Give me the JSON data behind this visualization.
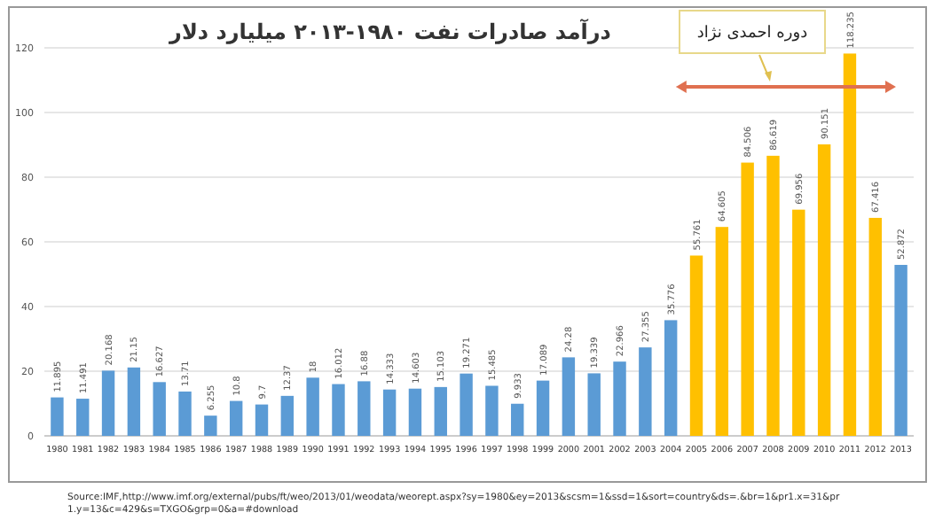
{
  "chart_data": {
    "type": "bar",
    "title": "درآمد صادرات نفت ۱۹۸۰-۲۰۱۳ میلیارد دلار",
    "categories": [
      "1980",
      "1981",
      "1982",
      "1983",
      "1984",
      "1985",
      "1986",
      "1987",
      "1988",
      "1989",
      "1990",
      "1991",
      "1992",
      "1993",
      "1994",
      "1995",
      "1996",
      "1997",
      "1998",
      "1999",
      "2000",
      "2001",
      "2002",
      "2003",
      "2004",
      "2005",
      "2006",
      "2007",
      "2008",
      "2009",
      "2010",
      "2011",
      "2012",
      "2013"
    ],
    "values": [
      11.895,
      11.491,
      20.168,
      21.15,
      16.627,
      13.71,
      6.255,
      10.8,
      9.7,
      12.37,
      18,
      16.012,
      16.88,
      14.333,
      14.603,
      15.103,
      19.271,
      15.485,
      9.933,
      17.089,
      24.28,
      19.339,
      22.966,
      27.355,
      35.776,
      55.761,
      64.605,
      84.506,
      86.619,
      69.956,
      90.151,
      118.235,
      67.416,
      52.872
    ],
    "colors": [
      "#5b9bd5",
      "#5b9bd5",
      "#5b9bd5",
      "#5b9bd5",
      "#5b9bd5",
      "#5b9bd5",
      "#5b9bd5",
      "#5b9bd5",
      "#5b9bd5",
      "#5b9bd5",
      "#5b9bd5",
      "#5b9bd5",
      "#5b9bd5",
      "#5b9bd5",
      "#5b9bd5",
      "#5b9bd5",
      "#5b9bd5",
      "#5b9bd5",
      "#5b9bd5",
      "#5b9bd5",
      "#5b9bd5",
      "#5b9bd5",
      "#5b9bd5",
      "#5b9bd5",
      "#5b9bd5",
      "#ffc000",
      "#ffc000",
      "#ffc000",
      "#ffc000",
      "#ffc000",
      "#ffc000",
      "#ffc000",
      "#ffc000",
      "#5b9bd5"
    ],
    "ylim": [
      0,
      120
    ],
    "yticks": [
      0,
      20,
      40,
      60,
      80,
      100,
      120
    ],
    "grid": "y",
    "data_labels": true,
    "annotations": [
      "دوره احمدی نژاد",
      "Source:IMF,http://www.imf.org/external/pubs/ft/weo/2013/01/weodata/weorept.aspx?sy=1980&ey=2013&scsm=1&ssd=1&sort=country&ds=.&br=1&pr1.x=31&pr1.y=13&c=429&s=TXGO&grp=0&a=#download"
    ]
  }
}
